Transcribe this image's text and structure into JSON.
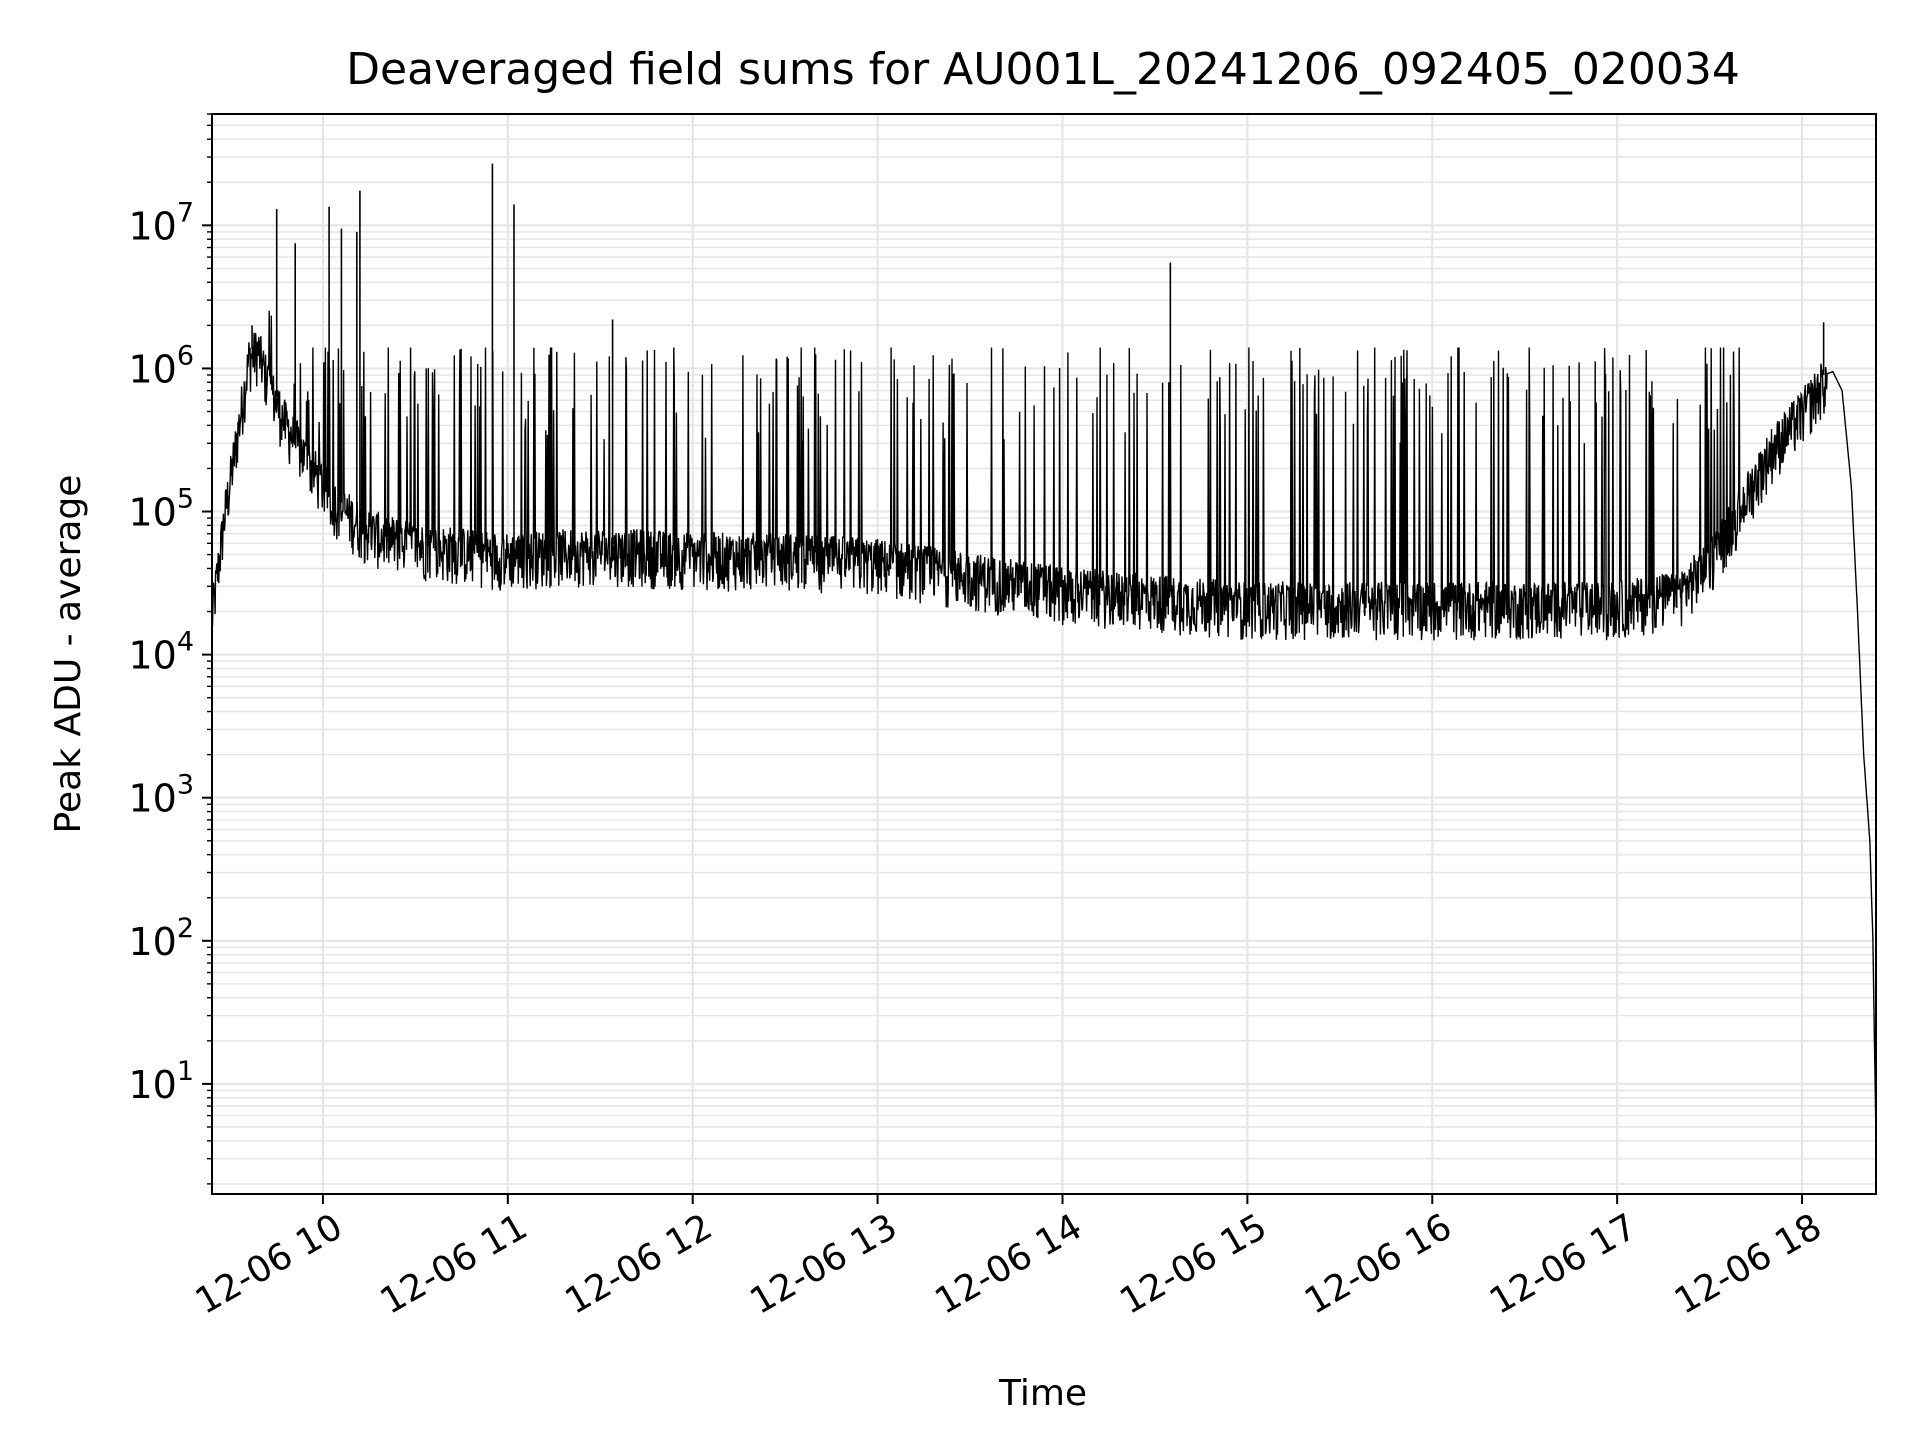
{
  "chart_data": {
    "type": "line",
    "title": "Deaveraged field sums for AU001L_20241206_092405_020034",
    "xlabel": "Time",
    "ylabel": "Peak ADU - average",
    "y_scale": "log",
    "ylim": [
      1.7,
      60000000
    ],
    "xlim": [
      "2024-12-06 09:24",
      "2024-12-06 18:24"
    ],
    "grid": true,
    "line_color": "#000000",
    "x_ticks": [
      "12-06 10",
      "12-06 11",
      "12-06 12",
      "12-06 13",
      "12-06 14",
      "12-06 15",
      "12-06 16",
      "12-06 17",
      "12-06 18"
    ],
    "x_tick_values": [
      "2024-12-06 10:00",
      "2024-12-06 11:00",
      "2024-12-06 12:00",
      "2024-12-06 13:00",
      "2024-12-06 14:00",
      "2024-12-06 15:00",
      "2024-12-06 16:00",
      "2024-12-06 17:00",
      "2024-12-06 18:00"
    ],
    "y_ticks": [
      {
        "base": "10",
        "exp": "1",
        "value": 10
      },
      {
        "base": "10",
        "exp": "2",
        "value": 100
      },
      {
        "base": "10",
        "exp": "3",
        "value": 1000
      },
      {
        "base": "10",
        "exp": "4",
        "value": 10000
      },
      {
        "base": "10",
        "exp": "5",
        "value": 100000
      },
      {
        "base": "10",
        "exp": "6",
        "value": 1000000
      },
      {
        "base": "10",
        "exp": "7",
        "value": 10000000
      }
    ],
    "baseline": [
      [
        "2024-12-06 09:24",
        20000
      ],
      [
        "2024-12-06 09:28",
        100000
      ],
      [
        "2024-12-06 09:32",
        350000
      ],
      [
        "2024-12-06 09:36",
        1300000
      ],
      [
        "2024-12-06 09:39",
        1500000
      ],
      [
        "2024-12-06 09:42",
        900000
      ],
      [
        "2024-12-06 09:48",
        450000
      ],
      [
        "2024-12-06 09:55",
        250000
      ],
      [
        "2024-12-06 10:05",
        120000
      ],
      [
        "2024-12-06 10:15",
        80000
      ],
      [
        "2024-12-06 10:30",
        65000
      ],
      [
        "2024-12-06 11:00",
        55000
      ],
      [
        "2024-12-06 11:30",
        60000
      ],
      [
        "2024-12-06 12:00",
        55000
      ],
      [
        "2024-12-06 12:30",
        55000
      ],
      [
        "2024-12-06 13:00",
        50000
      ],
      [
        "2024-12-06 13:30",
        40000
      ],
      [
        "2024-12-06 14:00",
        32000
      ],
      [
        "2024-12-06 14:30",
        28000
      ],
      [
        "2024-12-06 15:00",
        25000
      ],
      [
        "2024-12-06 15:30",
        25000
      ],
      [
        "2024-12-06 16:00",
        25000
      ],
      [
        "2024-12-06 16:30",
        25000
      ],
      [
        "2024-12-06 17:00",
        25000
      ],
      [
        "2024-12-06 17:20",
        30000
      ],
      [
        "2024-12-06 17:30",
        50000
      ],
      [
        "2024-12-06 17:40",
        120000
      ],
      [
        "2024-12-06 17:50",
        300000
      ],
      [
        "2024-12-06 18:00",
        550000
      ],
      [
        "2024-12-06 18:07",
        900000
      ],
      [
        "2024-12-06 18:10",
        950000
      ],
      [
        "2024-12-06 18:13",
        700000
      ],
      [
        "2024-12-06 18:16",
        150000
      ],
      [
        "2024-12-06 18:18",
        20000
      ],
      [
        "2024-12-06 18:20",
        2000
      ],
      [
        "2024-12-06 18:22",
        500
      ],
      [
        "2024-12-06 18:23",
        100
      ],
      [
        "2024-12-06 18:24",
        4
      ]
    ],
    "spikes": [
      [
        "2024-12-06 09:45",
        13000000
      ],
      [
        "2024-12-06 09:51",
        7500000
      ],
      [
        "2024-12-06 10:02",
        13500000
      ],
      [
        "2024-12-06 10:06",
        9500000
      ],
      [
        "2024-12-06 10:11",
        9000000
      ],
      [
        "2024-12-06 10:12",
        17500000
      ],
      [
        "2024-12-06 10:55",
        27000000
      ],
      [
        "2024-12-06 11:02",
        14000000
      ],
      [
        "2024-12-06 11:34",
        2200000
      ],
      [
        "2024-12-06 14:35",
        5500000
      ],
      [
        "2024-12-06 18:07",
        2100000
      ],
      [
        "2024-12-06 09:37",
        2000000
      ]
    ],
    "noise_band": {
      "upper": 1000000,
      "lower_factor": 0.5
    }
  }
}
